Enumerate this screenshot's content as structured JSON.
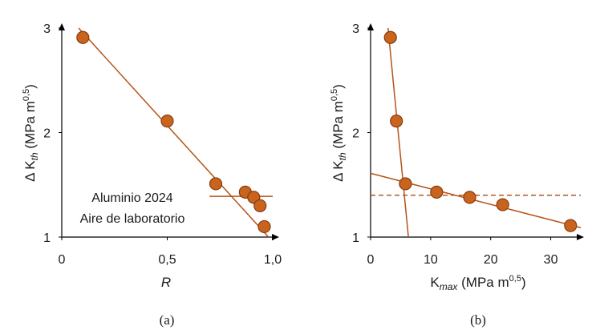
{
  "colors": {
    "accent": "#b4541a",
    "point_fill": "#c8641e",
    "point_stroke": "#8a3a0c",
    "axis": "#000000"
  },
  "chart_data": [
    {
      "type": "scatter",
      "panel_label": "(a)",
      "xlabel": "R",
      "ylabel": {
        "prefix": "Δ K",
        "sub": "th",
        "unit": " (MPa m",
        "sup": "0,5",
        "close": ")"
      },
      "xlim": [
        0,
        1.0
      ],
      "ylim": [
        1,
        3
      ],
      "xticks": [
        {
          "v": 0,
          "label": "0"
        },
        {
          "v": 0.5,
          "label": "0,5"
        },
        {
          "v": 1.0,
          "label": "1,0"
        }
      ],
      "yticks": [
        {
          "v": 1,
          "label": "1"
        },
        {
          "v": 2,
          "label": "2"
        },
        {
          "v": 3,
          "label": "3"
        }
      ],
      "points": [
        {
          "x": 0.1,
          "y": 2.91
        },
        {
          "x": 0.5,
          "y": 2.11
        },
        {
          "x": 0.73,
          "y": 1.51
        },
        {
          "x": 0.87,
          "y": 1.43
        },
        {
          "x": 0.91,
          "y": 1.38
        },
        {
          "x": 0.94,
          "y": 1.3
        },
        {
          "x": 0.96,
          "y": 1.1
        }
      ],
      "lines": [
        {
          "style": "solid",
          "x1": 0.08,
          "y1": 3.0,
          "x2": 0.98,
          "y2": 1.0
        },
        {
          "style": "solid",
          "x1": 0.7,
          "y1": 1.39,
          "x2": 1.0,
          "y2": 1.39
        }
      ],
      "annotations": [
        "Aluminio 2024",
        "Aire de laboratorio"
      ],
      "grid": false
    },
    {
      "type": "scatter",
      "panel_label": "(b)",
      "xlabel": {
        "prefix": "K",
        "sub": "max",
        "unit": " (MPa m",
        "sup": "0,5",
        "close": ")"
      },
      "ylabel": {
        "prefix": "Δ K",
        "sub": "th",
        "unit": " (MPa m",
        "sup": "0,5",
        "close": ")"
      },
      "xlim": [
        0,
        35
      ],
      "ylim": [
        1,
        3
      ],
      "xticks": [
        {
          "v": 0,
          "label": "0"
        },
        {
          "v": 10,
          "label": "10"
        },
        {
          "v": 20,
          "label": "20"
        },
        {
          "v": 30,
          "label": "30"
        }
      ],
      "yticks": [
        {
          "v": 1,
          "label": "1"
        },
        {
          "v": 2,
          "label": "2"
        },
        {
          "v": 3,
          "label": "3"
        }
      ],
      "points": [
        {
          "x": 3.3,
          "y": 2.91
        },
        {
          "x": 4.3,
          "y": 2.11
        },
        {
          "x": 5.8,
          "y": 1.51
        },
        {
          "x": 11.0,
          "y": 1.43
        },
        {
          "x": 16.5,
          "y": 1.38
        },
        {
          "x": 22.0,
          "y": 1.31
        },
        {
          "x": 33.3,
          "y": 1.11
        }
      ],
      "lines": [
        {
          "style": "solid",
          "x1": 2.9,
          "y1": 3.0,
          "x2": 6.3,
          "y2": 1.0
        },
        {
          "style": "solid",
          "x1": 0,
          "y1": 1.61,
          "x2": 35,
          "y2": 1.09
        },
        {
          "style": "dashed",
          "x1": 0,
          "y1": 1.4,
          "x2": 35,
          "y2": 1.4
        }
      ],
      "grid": false
    }
  ]
}
